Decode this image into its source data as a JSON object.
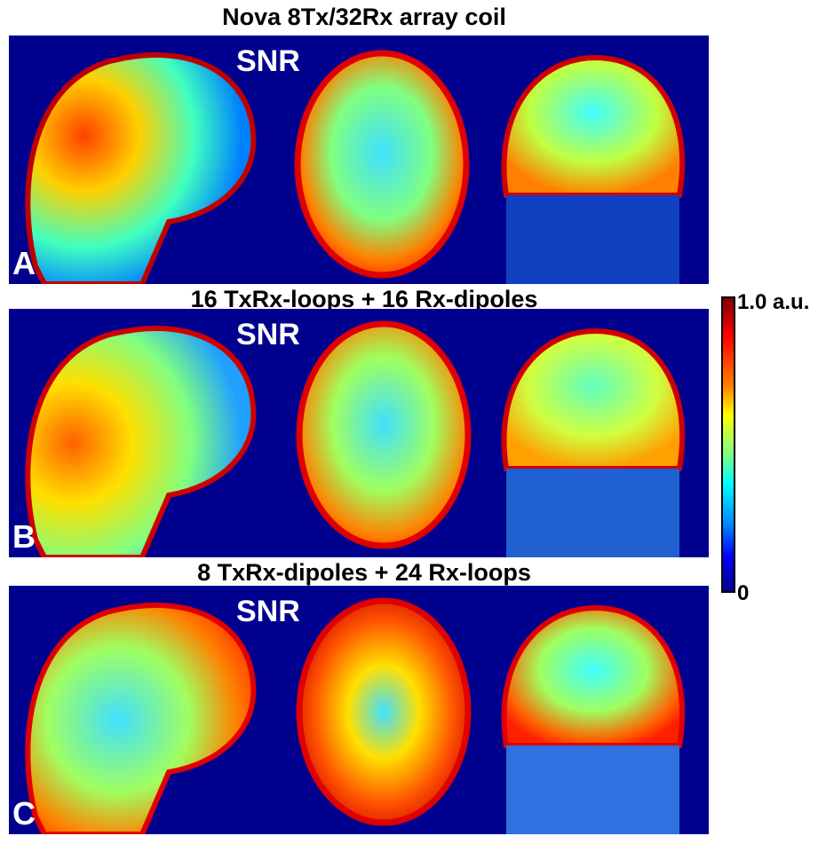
{
  "panels": [
    {
      "title": "Nova 8Tx/32Rx array coil",
      "snr_label": "SNR",
      "letter": "A"
    },
    {
      "title": "16 TxRx-loops + 16 Rx-dipoles",
      "snr_label": "SNR",
      "letter": "B"
    },
    {
      "title": "8 TxRx-dipoles + 24 Rx-loops",
      "snr_label": "SNR",
      "letter": "C"
    }
  ],
  "colorbar": {
    "max_label": "1.0 a.u.",
    "min_label": "0"
  },
  "colors": {
    "background": "#00008f",
    "high": "#800000",
    "mid": "#ffff00",
    "low": "#0000ff"
  }
}
